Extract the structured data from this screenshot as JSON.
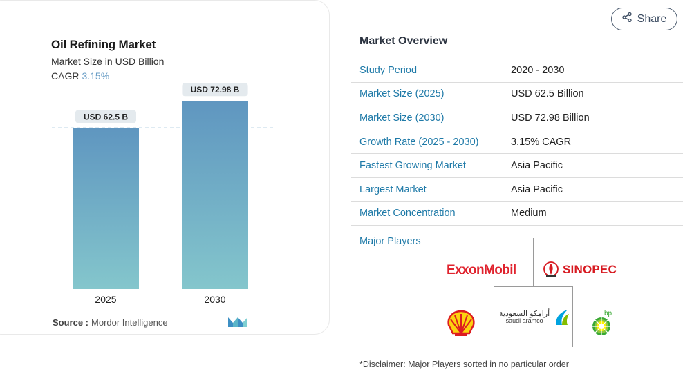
{
  "chart": {
    "title": "Oil Refining Market",
    "subtitle": "Market Size in USD Billion",
    "cagr_label": "CAGR",
    "cagr_value": "3.15%",
    "source_label": "Source :",
    "source_value": "Mordor Intelligence"
  },
  "chart_data": {
    "type": "bar",
    "categories": [
      "2025",
      "2030"
    ],
    "values": [
      62.5,
      72.98
    ],
    "data_labels": [
      "USD 62.5 B",
      "USD 72.98 B"
    ],
    "title": "Oil Refining Market",
    "subtitle": "Market Size in USD Billion",
    "xlabel": "",
    "ylabel": "",
    "ylim": [
      0,
      80
    ],
    "reference_line": 62.5,
    "grid": false,
    "bar_gradient": [
      "#5f96c0",
      "#84c6cc"
    ],
    "reference_color": "#7fa9c9"
  },
  "share": {
    "label": "Share"
  },
  "overview": {
    "title": "Market Overview",
    "rows": [
      {
        "key": "Study Period",
        "value": "2020 - 2030"
      },
      {
        "key": "Market Size (2025)",
        "value": "USD 62.5 Billion"
      },
      {
        "key": "Market Size (2030)",
        "value": "USD 72.98 Billion"
      },
      {
        "key": "Growth Rate (2025 - 2030)",
        "value": "3.15% CAGR"
      },
      {
        "key": "Fastest Growing Market",
        "value": "Asia Pacific"
      },
      {
        "key": "Largest Market",
        "value": "Asia Pacific"
      },
      {
        "key": "Market Concentration",
        "value": "Medium"
      }
    ],
    "players_label": "Major Players",
    "players": {
      "exxon": "ExxonMobil",
      "sinopec": "SINOPEC",
      "aramco_ar": "أرامكو السعودية",
      "aramco_en": "saudi aramco",
      "bp": "bp"
    },
    "disclaimer": "*Disclaimer: Major Players sorted in no particular order"
  },
  "colors": {
    "accent": "#1f7aa8",
    "cagr": "#6a9ec6",
    "exxon_red": "#e0232e",
    "sinopec_red": "#d71920",
    "shell_yellow": "#fcd20f",
    "shell_red": "#dd1d21",
    "bp_green": "#3aa935",
    "aramco_green": "#00a3e0"
  },
  "icons": {
    "share": "share-icon",
    "mordor": "mordor-intelligence-logo"
  }
}
